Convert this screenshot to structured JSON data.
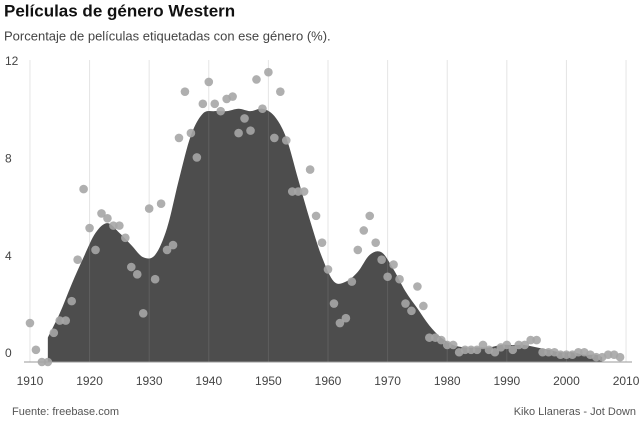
{
  "chart_data": {
    "type": "scatter",
    "title": "Películas de género Western",
    "subtitle": "Porcentaje de películas etiquetadas con ese género (%).",
    "source": "Fuente: freebase.com",
    "credit": "Kiko Llaneras - Jot Down",
    "xlim": [
      1909,
      2011
    ],
    "xticks": [
      1910,
      1920,
      1930,
      1940,
      1950,
      1960,
      1970,
      1980,
      1990,
      2000,
      2010
    ],
    "ylim": [
      0,
      12.4
    ],
    "yticks": [
      0,
      4,
      8,
      12
    ],
    "grid": true,
    "series": [
      {
        "type": "area",
        "color": "#4d4d4d",
        "x": [
          1913,
          1915,
          1917,
          1919,
          1921,
          1923,
          1925,
          1927,
          1929,
          1931,
          1933,
          1935,
          1937,
          1939,
          1941,
          1943,
          1945,
          1947,
          1949,
          1951,
          1953,
          1955,
          1957,
          1959,
          1961,
          1963,
          1965,
          1967,
          1969,
          1971,
          1973,
          1975,
          1977,
          1979,
          1981,
          1983,
          1985,
          1987,
          1989,
          1991,
          1993,
          1995,
          1997,
          1999,
          2001,
          2003,
          2005,
          2006
        ],
        "values": [
          1.0,
          2.0,
          3.2,
          4.3,
          5.3,
          5.7,
          5.3,
          4.8,
          4.3,
          4.4,
          5.5,
          7.5,
          9.3,
          10.2,
          10.3,
          10.3,
          10.4,
          10.3,
          10.4,
          10.1,
          9.2,
          7.5,
          5.8,
          4.3,
          3.3,
          3.3,
          3.7,
          4.4,
          4.5,
          3.8,
          2.9,
          2.2,
          1.5,
          1.0,
          0.7,
          0.6,
          0.6,
          0.6,
          0.7,
          0.7,
          0.7,
          0.6,
          0.5,
          0.4,
          0.4,
          0.3,
          0.3,
          0.2
        ]
      },
      {
        "type": "scatter",
        "color": "#a6a6a6",
        "x": [
          1910,
          1911,
          1912,
          1913,
          1914,
          1915,
          1916,
          1917,
          1918,
          1919,
          1920,
          1921,
          1922,
          1923,
          1924,
          1925,
          1926,
          1927,
          1928,
          1929,
          1930,
          1931,
          1932,
          1933,
          1934,
          1935,
          1936,
          1937,
          1938,
          1939,
          1940,
          1941,
          1942,
          1943,
          1944,
          1945,
          1946,
          1947,
          1948,
          1949,
          1950,
          1951,
          1952,
          1953,
          1954,
          1955,
          1956,
          1957,
          1958,
          1959,
          1960,
          1961,
          1962,
          1963,
          1964,
          1965,
          1966,
          1967,
          1968,
          1969,
          1970,
          1971,
          1972,
          1973,
          1974,
          1975,
          1976,
          1977,
          1978,
          1979,
          1980,
          1981,
          1982,
          1983,
          1984,
          1985,
          1986,
          1987,
          1988,
          1989,
          1990,
          1991,
          1992,
          1993,
          1994,
          1995,
          1996,
          1997,
          1998,
          1999,
          2000,
          2001,
          2002,
          2003,
          2004,
          2005,
          2006,
          2007,
          2008,
          2009
        ],
        "values": [
          1.6,
          0.5,
          0.0,
          0.0,
          1.2,
          1.7,
          1.7,
          2.5,
          4.2,
          7.1,
          5.5,
          4.6,
          6.1,
          5.9,
          5.6,
          5.6,
          5.1,
          3.9,
          3.6,
          2.0,
          6.3,
          3.4,
          6.5,
          4.6,
          4.8,
          9.2,
          11.1,
          9.4,
          8.4,
          10.6,
          11.5,
          10.6,
          10.3,
          10.8,
          10.9,
          9.4,
          10.0,
          9.5,
          11.6,
          10.4,
          11.9,
          9.2,
          11.1,
          9.1,
          7.0,
          7.0,
          7.0,
          7.9,
          6.0,
          4.9,
          3.8,
          2.4,
          1.6,
          1.8,
          3.3,
          4.6,
          5.4,
          6.0,
          4.9,
          4.2,
          3.5,
          4.0,
          3.4,
          2.4,
          2.1,
          3.1,
          2.3,
          1.0,
          1.0,
          0.9,
          0.7,
          0.7,
          0.4,
          0.5,
          0.5,
          0.5,
          0.7,
          0.5,
          0.4,
          0.6,
          0.7,
          0.5,
          0.7,
          0.7,
          0.9,
          0.9,
          0.4,
          0.4,
          0.4,
          0.3,
          0.3,
          0.3,
          0.4,
          0.4,
          0.3,
          0.2,
          0.2,
          0.3,
          0.3,
          0.2
        ]
      }
    ]
  }
}
